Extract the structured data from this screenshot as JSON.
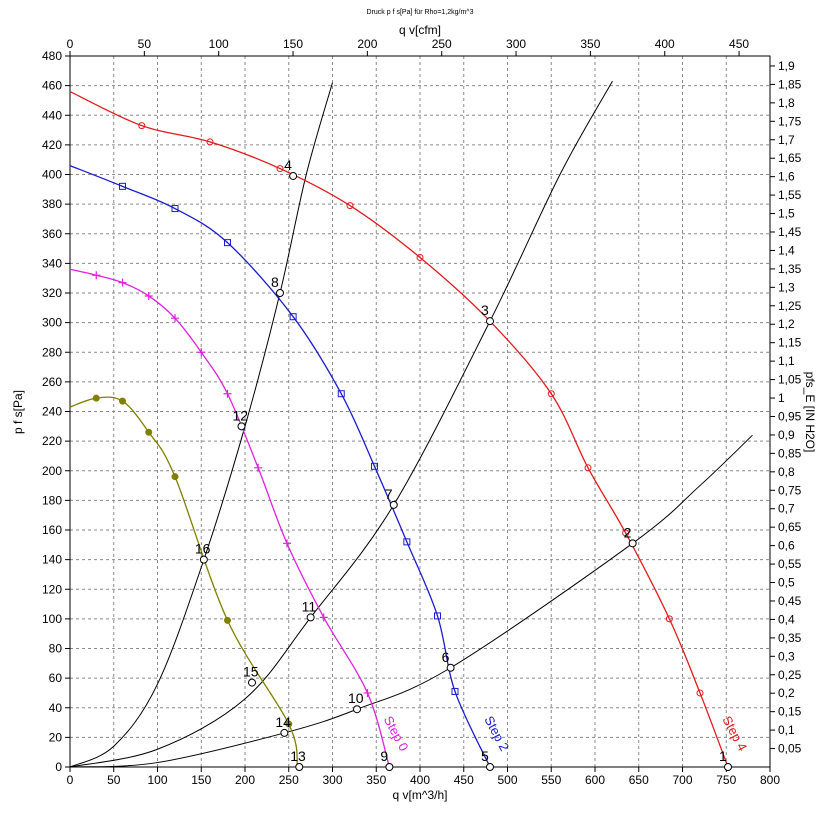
{
  "chart_data": {
    "type": "line",
    "title": "Druck p f s[Pa] für Rho=1,2kg/m^3",
    "xlabel": "q v[m^3/h]",
    "x2label": "q v[cfm]",
    "ylabel": "p f s[Pa]",
    "y2label": "pfs_E [IN H2O]",
    "xlim": [
      0,
      800
    ],
    "ylim": [
      0,
      480
    ],
    "x2lim": [
      0,
      470.8
    ],
    "y2lim": [
      0,
      1.927
    ],
    "xticks": [
      "0",
      "50",
      "100",
      "150",
      "200",
      "250",
      "300",
      "350",
      "400",
      "450",
      "500",
      "550",
      "600",
      "650",
      "700",
      "750",
      "800"
    ],
    "yticks": [
      "0",
      "20",
      "40",
      "60",
      "80",
      "100",
      "120",
      "140",
      "160",
      "180",
      "200",
      "220",
      "240",
      "260",
      "280",
      "300",
      "320",
      "340",
      "360",
      "380",
      "400",
      "420",
      "440",
      "460",
      "480"
    ],
    "x2ticks": [
      "0",
      "50",
      "100",
      "150",
      "200",
      "250",
      "300",
      "350",
      "400",
      "450"
    ],
    "y2ticks": [
      "0,05",
      "0,1",
      "0,15",
      "0,2",
      "0,25",
      "0,3",
      "0,35",
      "0,4",
      "0,45",
      "0,5",
      "0,55",
      "0,6",
      "0,65",
      "0,7",
      "0,75",
      "0,8",
      "0,85",
      "0,9",
      "0,95",
      "1",
      "1,05",
      "1,1",
      "1,15",
      "1,2",
      "1,25",
      "1,3",
      "1,35",
      "1,4",
      "1,45",
      "1,5",
      "1,55",
      "1,6",
      "1,65",
      "1,7",
      "1,75",
      "1,8",
      "1,85",
      "1,9"
    ],
    "grid": true,
    "fan_curves": [
      {
        "name": "Step 4",
        "color": "#e31a1c",
        "marker": "circle",
        "x": [
          0,
          82,
          160,
          240,
          320,
          400,
          480,
          550,
          592,
          635,
          685,
          720,
          752
        ],
        "y": [
          456,
          433,
          422,
          404,
          379,
          344,
          301,
          252,
          202,
          158,
          100,
          50,
          0
        ]
      },
      {
        "name": "Step 2",
        "color": "#1c1cd0",
        "marker": "square",
        "x": [
          0,
          60,
          120,
          180,
          255,
          310,
          348,
          385,
          420,
          440,
          480
        ],
        "y": [
          406,
          392,
          377,
          354,
          304,
          252,
          203,
          152,
          102,
          51,
          0
        ]
      },
      {
        "name": "Step 0",
        "color": "#e020e0",
        "marker": "plus",
        "x": [
          0,
          30,
          60,
          90,
          120,
          150,
          180,
          215,
          248,
          290,
          340,
          365
        ],
        "y": [
          336,
          332,
          327,
          318,
          303,
          280,
          252,
          202,
          151,
          101,
          50,
          0
        ]
      },
      {
        "name": "",
        "color": "#808000",
        "marker": "diamond",
        "x": [
          0,
          30,
          60,
          90,
          120,
          180,
          250,
          260
        ],
        "y": [
          243,
          249,
          247,
          226,
          196,
          99,
          29,
          0
        ]
      }
    ],
    "system_curves": [
      {
        "name": "",
        "color": "#000000",
        "x": [
          0,
          50,
          100,
          153,
          200,
          240,
          270,
          300
        ],
        "y": [
          0,
          14,
          56,
          140,
          230,
          320,
          400,
          462
        ]
      },
      {
        "name": "",
        "color": "#000000",
        "x": [
          0,
          100,
          200,
          275,
          370,
          480,
          560,
          620
        ],
        "y": [
          0,
          12,
          46,
          101,
          177,
          301,
          400,
          463
        ]
      },
      {
        "name": "",
        "color": "#000000",
        "x": [
          0,
          100,
          245,
          328,
          435,
          643,
          720,
          780
        ],
        "y": [
          0,
          3,
          23,
          39,
          67,
          151,
          190,
          224
        ]
      }
    ],
    "operating_points": [
      {
        "label": "1",
        "x": 752,
        "y": 0
      },
      {
        "label": "2",
        "x": 643,
        "y": 151
      },
      {
        "label": "3",
        "x": 480,
        "y": 301
      },
      {
        "label": "4",
        "x": 255,
        "y": 399
      },
      {
        "label": "5",
        "x": 480,
        "y": 0
      },
      {
        "label": "6",
        "x": 435,
        "y": 67
      },
      {
        "label": "7",
        "x": 370,
        "y": 177
      },
      {
        "label": "8",
        "x": 240,
        "y": 320
      },
      {
        "label": "9",
        "x": 365,
        "y": 0
      },
      {
        "label": "10",
        "x": 328,
        "y": 39
      },
      {
        "label": "11",
        "x": 275,
        "y": 101
      },
      {
        "label": "12",
        "x": 196,
        "y": 230
      },
      {
        "label": "13",
        "x": 262,
        "y": 0
      },
      {
        "label": "14",
        "x": 245,
        "y": 23
      },
      {
        "label": "15",
        "x": 208,
        "y": 57
      },
      {
        "label": "16",
        "x": 153,
        "y": 140
      }
    ]
  }
}
